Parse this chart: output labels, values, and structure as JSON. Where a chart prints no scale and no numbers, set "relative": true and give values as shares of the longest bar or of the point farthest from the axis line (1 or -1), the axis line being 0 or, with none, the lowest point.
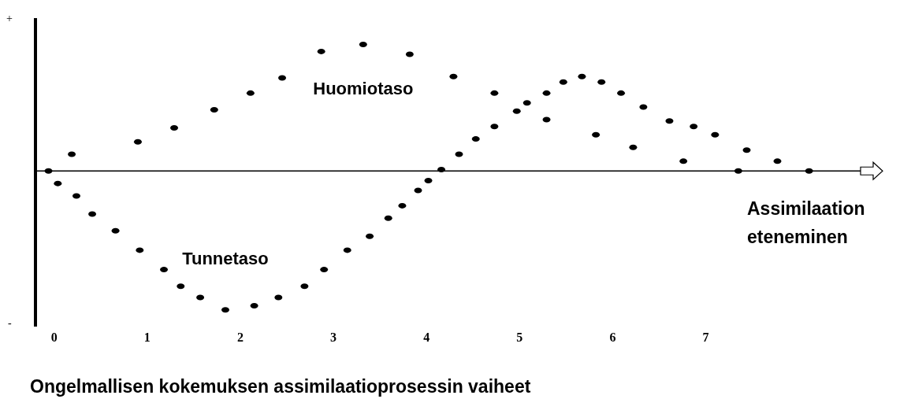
{
  "chart_data": {
    "type": "scatter",
    "relative": true,
    "xlabel": "Ongelmallisen kokemuksen assimilaatioprosessin vaiheet",
    "annotations": [
      "+",
      "-",
      "Assimilaation eteneminen"
    ],
    "xlim": [
      -0.2,
      8.9
    ],
    "xticks": [
      0,
      1,
      2,
      3,
      4,
      5,
      6,
      7
    ],
    "grid": false,
    "legend": false,
    "marker": "circle",
    "series": [
      {
        "name": "Huomiotaso",
        "color": "#000000",
        "x": [
          0.19,
          0.9,
          1.29,
          1.72,
          2.11,
          2.45,
          2.87,
          3.32,
          3.82,
          4.29,
          4.73,
          5.29,
          5.82,
          6.22,
          6.76,
          7.35
        ],
        "values": [
          0.12,
          0.21,
          0.31,
          0.44,
          0.56,
          0.67,
          0.86,
          0.91,
          0.84,
          0.68,
          0.56,
          0.37,
          0.26,
          0.17,
          0.07,
          0
        ]
      },
      {
        "name": "Tunnetaso",
        "color": "#000000",
        "x": [
          -0.06,
          0.04,
          0.24,
          0.41,
          0.66,
          0.92,
          1.18,
          1.36,
          1.57,
          1.84,
          2.15,
          2.41,
          2.69,
          2.9,
          3.15,
          3.39,
          3.59,
          3.74,
          3.91,
          4.02,
          4.16,
          4.35,
          4.53,
          4.73,
          4.97,
          5.08,
          5.29,
          5.47,
          5.67,
          5.88,
          6.09,
          6.33,
          6.61,
          6.87,
          7.1,
          7.44,
          7.77,
          8.11
        ],
        "values": [
          0,
          -0.09,
          -0.18,
          -0.31,
          -0.43,
          -0.57,
          -0.71,
          -0.83,
          -0.91,
          -1,
          -0.97,
          -0.91,
          -0.83,
          -0.71,
          -0.57,
          -0.47,
          -0.34,
          -0.25,
          -0.14,
          -0.07,
          0.01,
          0.12,
          0.23,
          0.32,
          0.43,
          0.49,
          0.56,
          0.64,
          0.68,
          0.64,
          0.56,
          0.46,
          0.36,
          0.32,
          0.26,
          0.15,
          0.07,
          0
        ]
      }
    ]
  }
}
